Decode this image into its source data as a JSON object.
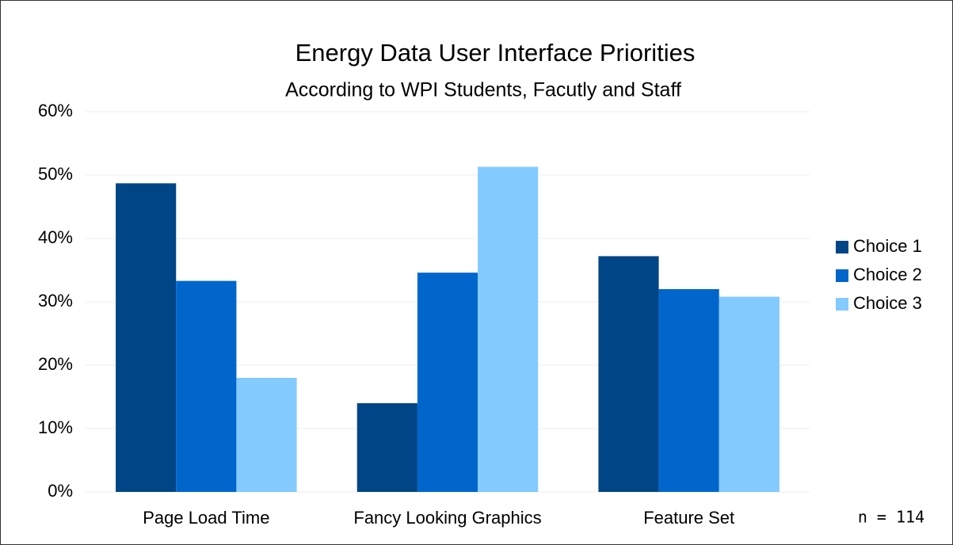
{
  "chart_data": {
    "type": "bar",
    "title": "Energy Data User Interface Priorities",
    "subtitle": "According to WPI Students, Facutly and Staff",
    "categories": [
      "Page Load Time",
      "Fancy Looking Graphics",
      "Feature Set"
    ],
    "series": [
      {
        "name": "Choice 1",
        "color": "#004586",
        "values": [
          48.7,
          14.0,
          37.2
        ]
      },
      {
        "name": "Choice 2",
        "color": "#0066cc",
        "values": [
          33.3,
          34.6,
          32.0
        ]
      },
      {
        "name": "Choice 3",
        "color": "#83caff",
        "values": [
          18.0,
          51.3,
          30.8
        ]
      }
    ],
    "ylim": [
      0,
      60
    ],
    "yticks": [
      {
        "value": 0,
        "label": "0%"
      },
      {
        "value": 10,
        "label": "10%"
      },
      {
        "value": 20,
        "label": "20%"
      },
      {
        "value": 30,
        "label": "30%"
      },
      {
        "value": 40,
        "label": "40%"
      },
      {
        "value": 50,
        "label": "50%"
      },
      {
        "value": 60,
        "label": "60%"
      }
    ],
    "grid": true,
    "legend": "right",
    "annotation": "n = 114"
  }
}
